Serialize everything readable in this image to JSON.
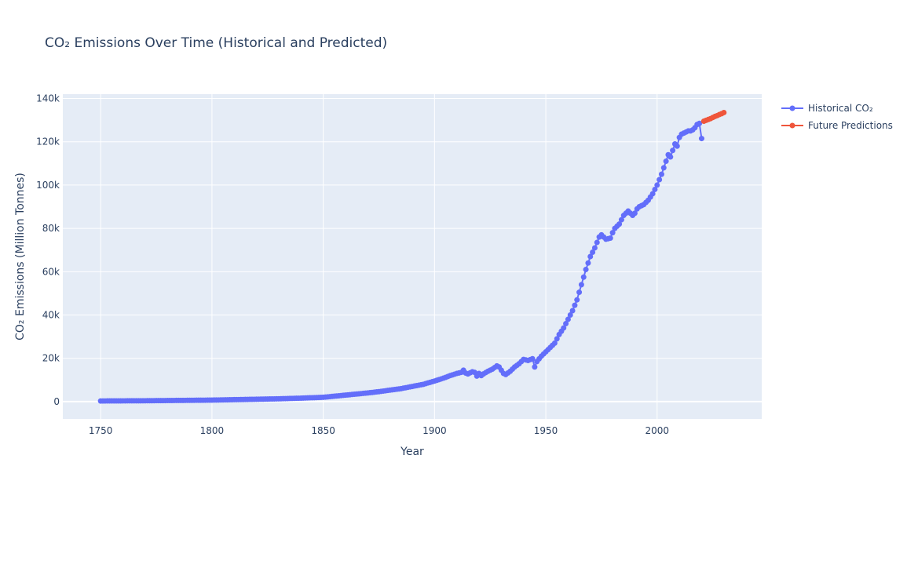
{
  "chart_data": {
    "type": "line",
    "title": "CO₂ Emissions Over Time (Historical and Predicted)",
    "xlabel": "Year",
    "ylabel": "CO₂ Emissions (Million Tonnes)",
    "xlim": [
      1733,
      2047
    ],
    "ylim": [
      -8000,
      142000
    ],
    "x_ticks": [
      1750,
      1800,
      1850,
      1900,
      1950,
      2000
    ],
    "x_tick_labels": [
      "1750",
      "1800",
      "1850",
      "1900",
      "1950",
      "2000"
    ],
    "y_ticks": [
      0,
      20000,
      40000,
      60000,
      80000,
      100000,
      120000,
      140000
    ],
    "y_tick_labels": [
      "0",
      "20k",
      "40k",
      "60k",
      "80k",
      "100k",
      "120k",
      "140k"
    ],
    "grid": true,
    "legend_position": "top-right",
    "series": [
      {
        "name": "Historical CO₂",
        "color": "#636efa",
        "x": [
          1750,
          1760,
          1770,
          1780,
          1790,
          1800,
          1810,
          1820,
          1830,
          1840,
          1850,
          1855,
          1860,
          1865,
          1870,
          1875,
          1880,
          1885,
          1890,
          1895,
          1900,
          1903,
          1905,
          1907,
          1910,
          1912,
          1913,
          1914,
          1915,
          1917,
          1918,
          1919,
          1920,
          1921,
          1922,
          1924,
          1926,
          1928,
          1929,
          1930,
          1931,
          1932,
          1934,
          1936,
          1938,
          1940,
          1942,
          1944,
          1945,
          1946,
          1948,
          1950,
          1952,
          1954,
          1956,
          1958,
          1960,
          1962,
          1964,
          1966,
          1968,
          1970,
          1972,
          1974,
          1975,
          1977,
          1979,
          1980,
          1981,
          1982,
          1983,
          1985,
          1987,
          1989,
          1990,
          1991,
          1992,
          1994,
          1996,
          1998,
          2000,
          2002,
          2004,
          2005,
          2006,
          2008,
          2009,
          2010,
          2011,
          2012,
          2013,
          2014,
          2015,
          2016,
          2017,
          2018,
          2019,
          2020
        ],
        "y": [
          300,
          350,
          400,
          500,
          600,
          700,
          900,
          1100,
          1300,
          1600,
          2000,
          2500,
          3000,
          3500,
          4000,
          4600,
          5300,
          6000,
          7000,
          8000,
          9500,
          10500,
          11200,
          12000,
          13000,
          13500,
          14500,
          13200,
          12800,
          13800,
          13500,
          11800,
          13000,
          12000,
          12800,
          14000,
          15000,
          16500,
          16000,
          14500,
          13000,
          12500,
          14000,
          16000,
          17500,
          19500,
          19000,
          19800,
          16000,
          18500,
          21000,
          23000,
          25000,
          27000,
          31000,
          34000,
          38000,
          42000,
          47000,
          54000,
          61000,
          67000,
          71000,
          76000,
          77000,
          75000,
          75500,
          78000,
          80000,
          81000,
          82000,
          86000,
          88000,
          86000,
          87000,
          89000,
          90000,
          91000,
          93000,
          96000,
          100000,
          105000,
          111000,
          114000,
          113000,
          119000,
          118000,
          122000,
          123500,
          124000,
          124500,
          125000,
          125000,
          125500,
          126500,
          128000,
          128500,
          121500
        ]
      },
      {
        "name": "Future Predictions",
        "color": "#ef553b",
        "x": [
          2021,
          2022,
          2023,
          2024,
          2025,
          2026,
          2027,
          2028,
          2029,
          2030
        ],
        "y": [
          129500,
          129900,
          130300,
          130700,
          131200,
          131700,
          132100,
          132600,
          133000,
          133500
        ]
      }
    ]
  }
}
